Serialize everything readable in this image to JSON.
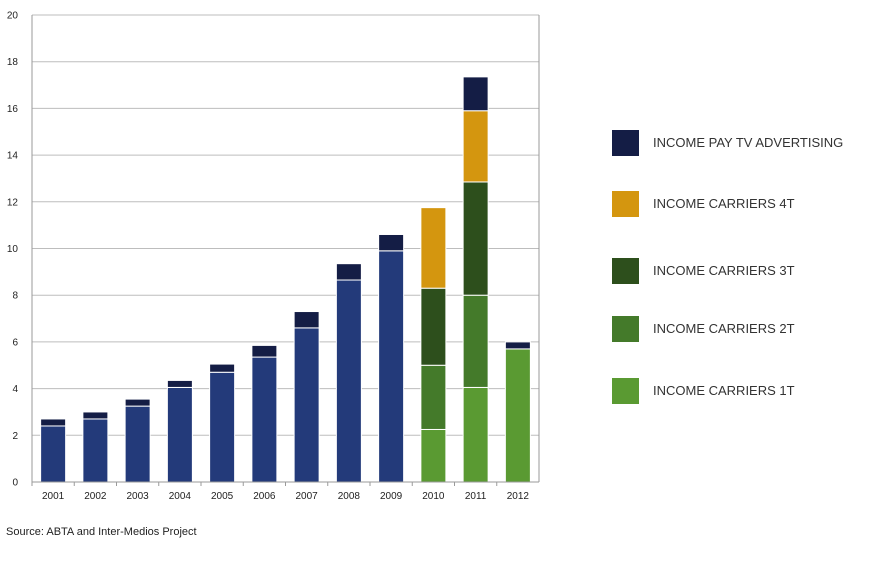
{
  "chart_data": {
    "type": "bar",
    "stacked": true,
    "categories": [
      "2001",
      "2002",
      "2003",
      "2004",
      "2005",
      "2006",
      "2007",
      "2008",
      "2009",
      "2010",
      "2011",
      "2012"
    ],
    "ylim": [
      0,
      20
    ],
    "yticks": [
      0,
      2,
      4,
      6,
      8,
      10,
      12,
      14,
      16,
      18,
      20
    ],
    "grid": true,
    "legend_position": "right",
    "series": [
      {
        "name": "",
        "color": "#233a7a",
        "values": [
          2.4,
          2.7,
          3.25,
          4.05,
          4.7,
          5.35,
          6.6,
          8.65,
          9.9,
          0,
          0,
          0
        ]
      },
      {
        "name": "INCOME CARRIERS 1T",
        "color": "#5a9a32",
        "values": [
          0,
          0,
          0,
          0,
          0,
          0,
          0,
          0,
          0,
          2.25,
          4.05,
          5.7
        ]
      },
      {
        "name": "INCOME CARRIERS 2T",
        "color": "#447a2a",
        "values": [
          0,
          0,
          0,
          0,
          0,
          0,
          0,
          0,
          0,
          2.75,
          3.95,
          0
        ]
      },
      {
        "name": "INCOME CARRIERS 3T",
        "color": "#2d4f1c",
        "values": [
          0,
          0,
          0,
          0,
          0,
          0,
          0,
          0,
          0,
          3.3,
          4.85,
          0
        ]
      },
      {
        "name": "INCOME CARRIERS 4T",
        "color": "#d4960f",
        "values": [
          0,
          0,
          0,
          0,
          0,
          0,
          0,
          0,
          0,
          3.45,
          3.05,
          0
        ]
      },
      {
        "name": "INCOME PAY TV ADVERTISING",
        "color": "#141d45",
        "values": [
          0.3,
          0.3,
          0.3,
          0.3,
          0.35,
          0.5,
          0.7,
          0.7,
          0.7,
          0,
          1.45,
          0.3
        ]
      }
    ],
    "legend_order": [
      "INCOME PAY TV ADVERTISING",
      "INCOME CARRIERS 4T",
      "INCOME CARRIERS 3T",
      "INCOME CARRIERS 2T",
      "INCOME CARRIERS 1T"
    ],
    "legend_colors": [
      "#141d45",
      "#d4960f",
      "#2d4f1c",
      "#447a2a",
      "#5a9a32"
    ]
  },
  "source_text": "Source: ABTA and Inter-Medios Project"
}
